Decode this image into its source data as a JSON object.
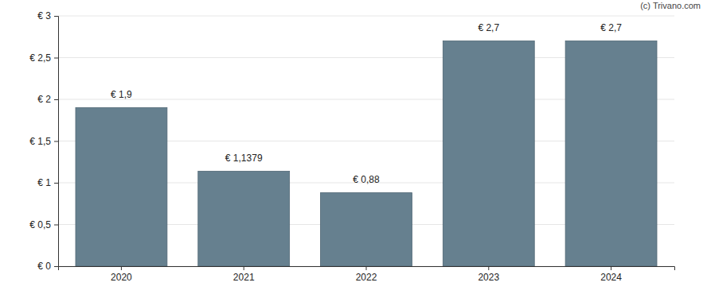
{
  "chart_data": {
    "type": "bar",
    "annotations": [
      "(c) Trivano.com"
    ],
    "categories": [
      "2020",
      "2021",
      "2022",
      "2023",
      "2024"
    ],
    "values": [
      1.9,
      1.1379,
      0.88,
      2.7,
      2.7
    ],
    "value_labels": [
      "€ 1,9",
      "€ 1,1379",
      "€ 0,88",
      "€ 2,7",
      "€ 2,7"
    ],
    "data_labels": true,
    "color": "#66808f",
    "ylim": [
      0,
      3
    ],
    "yticks": [
      {
        "value": 0,
        "label": "€ 0"
      },
      {
        "value": 0.5,
        "label": "€ 0,5"
      },
      {
        "value": 1,
        "label": "€ 1"
      },
      {
        "value": 1.5,
        "label": "€ 1,5"
      },
      {
        "value": 2,
        "label": "€ 2"
      },
      {
        "value": 2.5,
        "label": "€ 2,5"
      },
      {
        "value": 3,
        "label": "€ 3"
      }
    ],
    "grid": true
  }
}
